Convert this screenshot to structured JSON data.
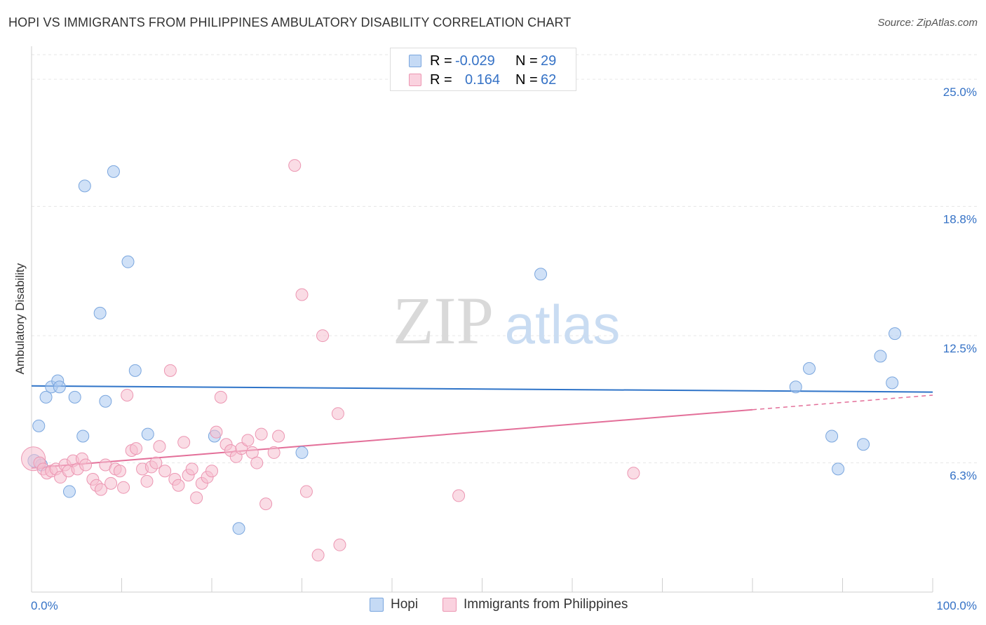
{
  "chart_data": {
    "type": "scatter",
    "title": "HOPI VS IMMIGRANTS FROM PHILIPPINES AMBULATORY DISABILITY CORRELATION CHART",
    "source": "Source: ZipAtlas.com",
    "xlabel": "",
    "ylabel": "Ambulatory Disability",
    "xlim": [
      0,
      100
    ],
    "ylim": [
      0,
      26.2
    ],
    "x_tick_labels": {
      "left": "0.0%",
      "right": "100.0%"
    },
    "y_ticks": [
      {
        "value": 6.3,
        "label": "6.3%"
      },
      {
        "value": 12.5,
        "label": "12.5%"
      },
      {
        "value": 18.8,
        "label": "18.8%"
      },
      {
        "value": 25.0,
        "label": "25.0%"
      }
    ],
    "watermark": {
      "zip": "ZIP",
      "atlas": "atlas"
    },
    "legend_stats": [
      {
        "r_label": "R =",
        "r_value": "-0.029",
        "n_label": "N =",
        "n_value": "29"
      },
      {
        "r_label": "R =",
        "r_value": "0.164",
        "n_label": "N =",
        "n_value": "62"
      }
    ],
    "series": [
      {
        "name": "Hopi",
        "color": "#a9c8f0",
        "stroke": "#7aa6de",
        "line_color": "#2f74c8",
        "trend": {
          "x0": 0,
          "y0": 10.05,
          "x1": 100,
          "y1": 9.75,
          "solid_to": 100
        },
        "points": [
          [
            0.3,
            6.4
          ],
          [
            0.8,
            8.1
          ],
          [
            1.1,
            6.2
          ],
          [
            1.6,
            9.5
          ],
          [
            2.2,
            10.0
          ],
          [
            2.9,
            10.3
          ],
          [
            3.1,
            10.0
          ],
          [
            4.2,
            4.9
          ],
          [
            4.8,
            9.5
          ],
          [
            5.7,
            7.6
          ],
          [
            5.9,
            19.8
          ],
          [
            7.6,
            13.6
          ],
          [
            8.2,
            9.3
          ],
          [
            9.1,
            20.5
          ],
          [
            10.7,
            16.1
          ],
          [
            11.5,
            10.8
          ],
          [
            12.9,
            7.7
          ],
          [
            20.3,
            7.6
          ],
          [
            23.0,
            3.1
          ],
          [
            30.0,
            6.8
          ],
          [
            56.5,
            15.5
          ],
          [
            84.8,
            10.0
          ],
          [
            86.3,
            10.9
          ],
          [
            88.8,
            7.6
          ],
          [
            89.5,
            6.0
          ],
          [
            92.3,
            7.2
          ],
          [
            94.2,
            11.5
          ],
          [
            95.5,
            10.2
          ],
          [
            95.8,
            12.6
          ]
        ]
      },
      {
        "name": "Immigrants from Philippines",
        "color": "#f5bfd0",
        "stroke": "#ec96b2",
        "line_color": "#e36f99",
        "trend": {
          "x0": 0,
          "y0": 6.05,
          "x1": 100,
          "y1": 9.6,
          "solid_to": 80
        },
        "points": [
          [
            0.2,
            6.5
          ],
          [
            0.9,
            6.3
          ],
          [
            1.3,
            6.0
          ],
          [
            1.7,
            5.8
          ],
          [
            2.2,
            5.9
          ],
          [
            2.7,
            6.0
          ],
          [
            3.2,
            5.6
          ],
          [
            3.7,
            6.2
          ],
          [
            4.1,
            5.9
          ],
          [
            4.6,
            6.4
          ],
          [
            5.1,
            6.0
          ],
          [
            5.6,
            6.5
          ],
          [
            6.0,
            6.2
          ],
          [
            6.8,
            5.5
          ],
          [
            7.2,
            5.2
          ],
          [
            7.7,
            5.0
          ],
          [
            8.2,
            6.2
          ],
          [
            8.8,
            5.3
          ],
          [
            9.3,
            6.0
          ],
          [
            9.8,
            5.9
          ],
          [
            10.2,
            5.1
          ],
          [
            10.6,
            9.6
          ],
          [
            11.1,
            6.9
          ],
          [
            11.6,
            7.0
          ],
          [
            12.3,
            6.0
          ],
          [
            12.8,
            5.4
          ],
          [
            13.3,
            6.1
          ],
          [
            13.8,
            6.3
          ],
          [
            14.2,
            7.1
          ],
          [
            14.8,
            5.9
          ],
          [
            15.4,
            10.8
          ],
          [
            15.9,
            5.5
          ],
          [
            16.3,
            5.2
          ],
          [
            16.9,
            7.3
          ],
          [
            17.4,
            5.7
          ],
          [
            17.8,
            6.0
          ],
          [
            18.3,
            4.6
          ],
          [
            18.9,
            5.3
          ],
          [
            19.5,
            5.6
          ],
          [
            20.0,
            5.9
          ],
          [
            20.5,
            7.8
          ],
          [
            21.0,
            9.5
          ],
          [
            21.6,
            7.2
          ],
          [
            22.1,
            6.9
          ],
          [
            22.7,
            6.6
          ],
          [
            23.3,
            7.0
          ],
          [
            24.0,
            7.4
          ],
          [
            24.5,
            6.8
          ],
          [
            25.0,
            6.3
          ],
          [
            25.5,
            7.7
          ],
          [
            26.0,
            4.3
          ],
          [
            26.9,
            6.8
          ],
          [
            27.4,
            7.6
          ],
          [
            29.2,
            20.8
          ],
          [
            30.0,
            14.5
          ],
          [
            30.5,
            4.9
          ],
          [
            31.8,
            1.8
          ],
          [
            32.3,
            12.5
          ],
          [
            34.0,
            8.7
          ],
          [
            34.2,
            2.3
          ],
          [
            47.4,
            4.7
          ],
          [
            66.8,
            5.8
          ]
        ]
      }
    ]
  }
}
